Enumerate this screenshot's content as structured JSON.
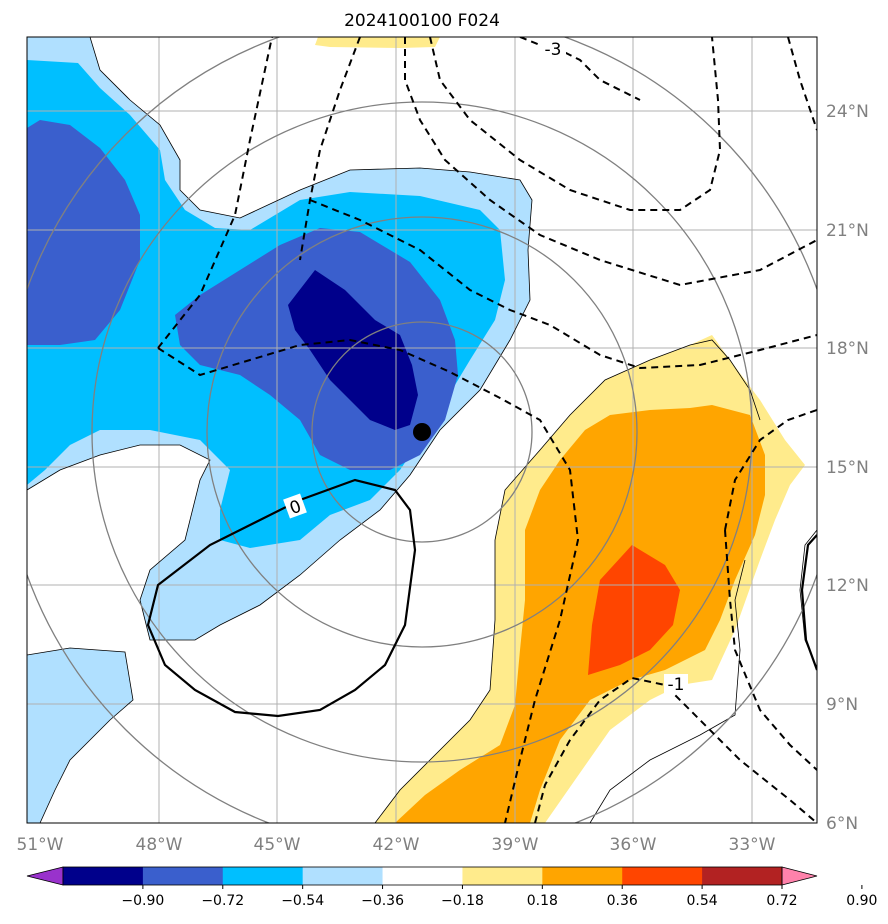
{
  "title": "2024100100 F024",
  "map": {
    "lon_labels": [
      "51°W",
      "48°W",
      "45°W",
      "42°W",
      "39°W",
      "36°W",
      "33°W"
    ],
    "lat_labels": [
      "24°N",
      "21°N",
      "18°N",
      "15°N",
      "12°N",
      "9°N",
      "6°N"
    ],
    "contour_labels": [
      "-3",
      "0",
      "-1"
    ],
    "storm_center": {
      "lon": -41.3,
      "lat": 15.9
    }
  },
  "colorbar": {
    "ticks": [
      "−0.90",
      "−0.72",
      "−0.54",
      "−0.36",
      "−0.18",
      "0.18",
      "0.36",
      "0.54",
      "0.72",
      "0.90"
    ],
    "colors": [
      "#9932cc",
      "#00008b",
      "#3a5fcd",
      "#00bfff",
      "#b0e0ff",
      "#ffffff",
      "#ffeb8c",
      "#ffa500",
      "#ff4500",
      "#b22222",
      "#ff82ab"
    ]
  },
  "colors": {
    "fill_strong_neg": "#00008b",
    "fill_mid_neg": "#3a5fcd",
    "fill_neg": "#00bfff",
    "fill_weak_neg": "#b0e0ff",
    "fill_weak_pos": "#ffeb8c",
    "fill_pos": "#ffa500",
    "fill_strong_pos": "#ff4500",
    "grid": "#b0b0b0",
    "range_rings": "#808080"
  }
}
